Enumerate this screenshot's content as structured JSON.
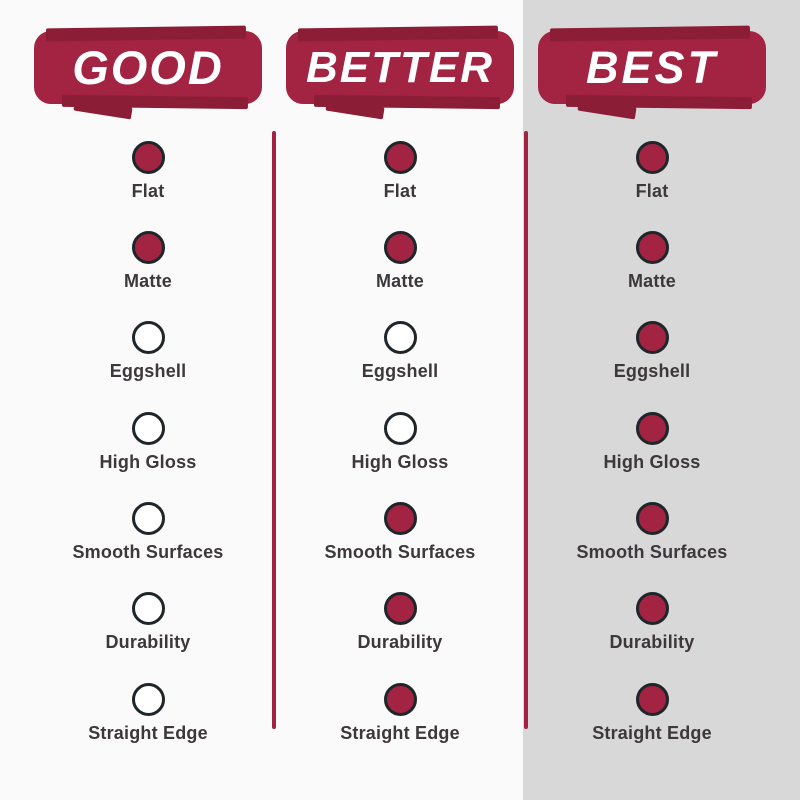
{
  "theme": {
    "background": "#fbfafa",
    "best_panel_background": "#d8d8d8",
    "accent": "#a32342",
    "accent_dark": "#8c1d36",
    "circle_ring": "#1e262a",
    "label_color": "#3d383b",
    "badge_text_color": "#ffffff"
  },
  "features": [
    "Flat",
    "Matte",
    "Eggshell",
    "High Gloss",
    "Smooth Surfaces",
    "Durability",
    "Straight Edge"
  ],
  "tiers": [
    {
      "title": "GOOD",
      "included": [
        true,
        true,
        false,
        false,
        false,
        false,
        false
      ]
    },
    {
      "title": "BETTER",
      "included": [
        true,
        true,
        false,
        false,
        true,
        true,
        true
      ]
    },
    {
      "title": "BEST",
      "included": [
        true,
        true,
        true,
        true,
        true,
        true,
        true
      ]
    }
  ],
  "chart_data": {
    "type": "table",
    "categories": [
      "Flat",
      "Matte",
      "Eggshell",
      "High Gloss",
      "Smooth Surfaces",
      "Durability",
      "Straight Edge"
    ],
    "series": [
      {
        "name": "GOOD",
        "values": [
          1,
          1,
          0,
          0,
          0,
          0,
          0
        ]
      },
      {
        "name": "BETTER",
        "values": [
          1,
          1,
          0,
          0,
          1,
          1,
          1
        ]
      },
      {
        "name": "BEST",
        "values": [
          1,
          1,
          1,
          1,
          1,
          1,
          1
        ]
      }
    ],
    "value_encoding": "1 = filled crimson circle (included), 0 = hollow circle (not included)",
    "layout": "three vertical tier columns, BEST column on gray panel, crimson dividers between columns"
  }
}
